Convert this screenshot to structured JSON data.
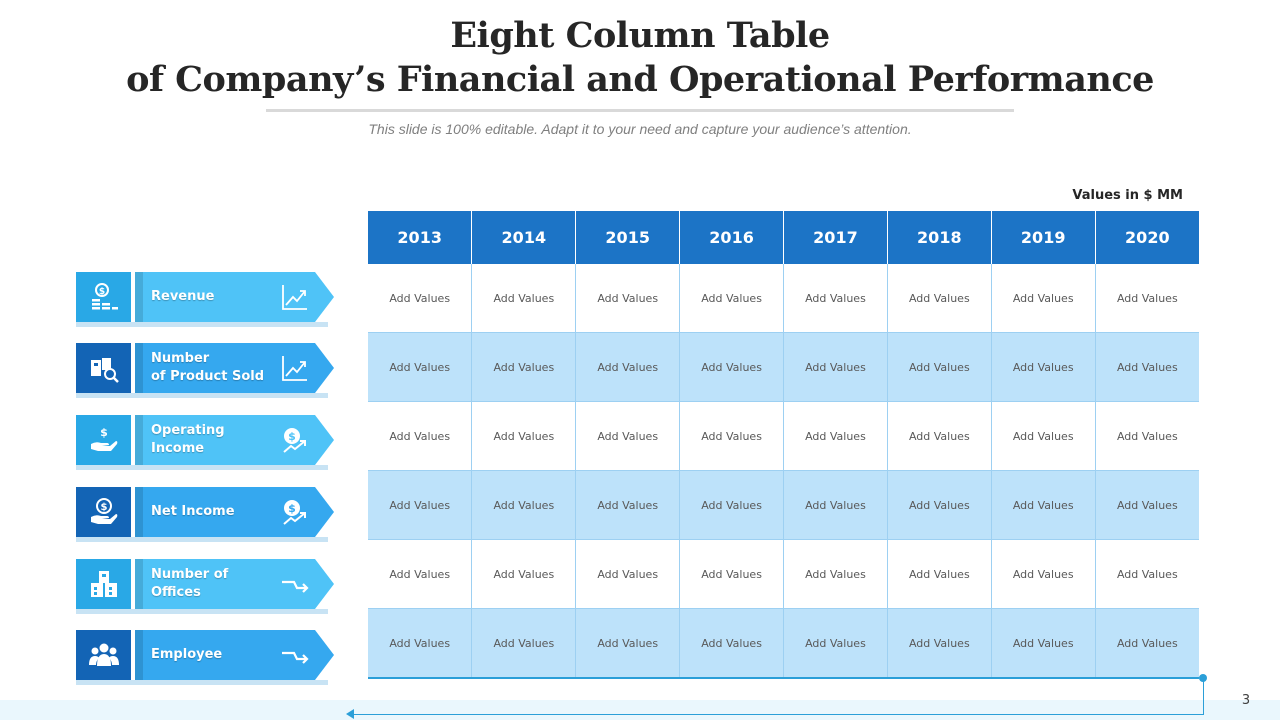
{
  "title_line1": "Eight Column Table",
  "title_line2": "of Company’s Financial and Operational Performance",
  "subtitle": "This slide is 100% editable. Adapt it to your need and capture your audience’s attention.",
  "units_label": "Values in $ MM",
  "columns": [
    "2013",
    "2014",
    "2015",
    "2016",
    "2017",
    "2018",
    "2019",
    "2020"
  ],
  "rows": [
    {
      "label_lines": [
        "Revenue"
      ],
      "icon": "money-stack-icon",
      "right_icon": "growth-chart-icon",
      "cells": [
        "Add Values",
        "Add Values",
        "Add Values",
        "Add Values",
        "Add Values",
        "Add Values",
        "Add Values",
        "Add Values"
      ]
    },
    {
      "label_lines": [
        "Number",
        "of Product Sold"
      ],
      "icon": "product-boxes-icon",
      "right_icon": "growth-chart-icon",
      "cells": [
        "Add Values",
        "Add Values",
        "Add Values",
        "Add Values",
        "Add Values",
        "Add Values",
        "Add Values",
        "Add Values"
      ]
    },
    {
      "label_lines": [
        "Operating Income"
      ],
      "icon": "hand-dollar-icon",
      "right_icon": "dollar-trend-icon",
      "cells": [
        "Add Values",
        "Add Values",
        "Add Values",
        "Add Values",
        "Add Values",
        "Add Values",
        "Add Values",
        "Add Values"
      ]
    },
    {
      "label_lines": [
        "Net Income"
      ],
      "icon": "hand-coin-icon",
      "right_icon": "dollar-trend-icon",
      "cells": [
        "Add Values",
        "Add Values",
        "Add Values",
        "Add Values",
        "Add Values",
        "Add Values",
        "Add Values",
        "Add Values"
      ]
    },
    {
      "label_lines": [
        "Number of Offices"
      ],
      "icon": "office-buildings-icon",
      "right_icon": "arrow-right-icon",
      "cells": [
        "Add Values",
        "Add Values",
        "Add Values",
        "Add Values",
        "Add Values",
        "Add Values",
        "Add Values",
        "Add Values"
      ]
    },
    {
      "label_lines": [
        "Employee"
      ],
      "icon": "people-group-icon",
      "right_icon": "arrow-right-icon",
      "cells": [
        "Add Values",
        "Add Values",
        "Add Values",
        "Add Values",
        "Add Values",
        "Add Values",
        "Add Values",
        "Add Values"
      ]
    }
  ],
  "page_number": "3",
  "colors": {
    "header_blue": "#1c74c6",
    "row_alt_blue": "#bde2fa",
    "light_arrow": "#4fc3f7",
    "dark_icon": "#1364b5"
  }
}
